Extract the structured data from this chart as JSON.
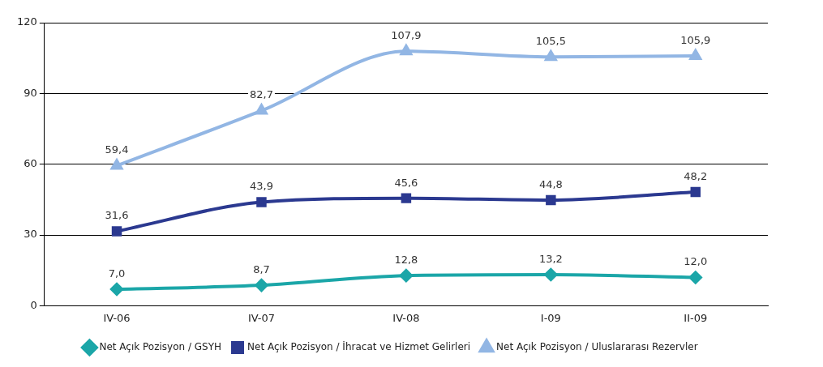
{
  "chart_data": {
    "type": "line",
    "categories": [
      "IV-06",
      "IV-07",
      "IV-08",
      "I-09",
      "II-09"
    ],
    "ylim": [
      0,
      120
    ],
    "yticks": [
      0,
      30,
      60,
      90,
      120
    ],
    "grid": "y",
    "legend": "bottom",
    "series": [
      {
        "name": "Net Açık Pozisyon / GSYH",
        "color": "#1ba6a8",
        "marker": "diamond",
        "values": [
          7.0,
          8.7,
          12.8,
          13.2,
          12.0
        ],
        "value_labels": [
          "7,0",
          "8,7",
          "12,8",
          "13,2",
          "12,0"
        ]
      },
      {
        "name": "Net Açık Pozisyon / İhracat ve Hizmet Gelirleri",
        "color": "#2b3990",
        "marker": "square",
        "values": [
          31.6,
          43.9,
          45.6,
          44.8,
          48.2
        ],
        "value_labels": [
          "31,6",
          "43,9",
          "45,6",
          "44,8",
          "48,2"
        ]
      },
      {
        "name": "Net Açık Pozisyon / Uluslararası Rezervler",
        "color": "#92b6e4",
        "marker": "triangle",
        "values": [
          59.4,
          82.7,
          107.9,
          105.5,
          105.9
        ],
        "value_labels": [
          "59,4",
          "82,7",
          "107,9",
          "105,5",
          "105,9"
        ]
      }
    ]
  }
}
